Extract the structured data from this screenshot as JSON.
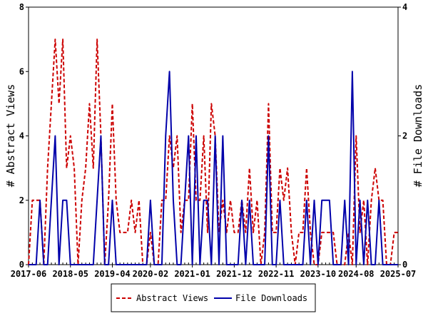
{
  "chart_data": {
    "type": "line",
    "x_tick_labels": [
      "2017-06",
      "2018-05",
      "2019-04",
      "2020-02",
      "2021-01",
      "2021-12",
      "2022-11",
      "2023-10",
      "2024-08",
      "2025-07"
    ],
    "x_range": [
      "2017-06",
      "2025-07"
    ],
    "y_left": {
      "label": "# Abstract Views",
      "range": [
        0,
        8
      ],
      "ticks": [
        "0",
        "2",
        "4",
        "6",
        "8"
      ]
    },
    "y_right": {
      "label": "# File Downloads",
      "range": [
        0,
        4
      ],
      "ticks": [
        "0",
        "2",
        "4"
      ]
    },
    "grid": false,
    "legend_position": "bottom",
    "series": [
      {
        "name": "Abstract Views",
        "axis": "left",
        "color": "#cc0000",
        "style": "dashed",
        "points": [
          [
            "2017-06",
            0
          ],
          [
            "2017-07",
            2
          ],
          [
            "2017-08",
            2
          ],
          [
            "2017-09",
            2
          ],
          [
            "2017-10",
            0
          ],
          [
            "2017-11",
            3
          ],
          [
            "2017-12",
            5
          ],
          [
            "2018-01",
            7
          ],
          [
            "2018-02",
            5
          ],
          [
            "2018-03",
            7
          ],
          [
            "2018-04",
            3
          ],
          [
            "2018-05",
            4
          ],
          [
            "2018-06",
            3
          ],
          [
            "2018-07",
            0
          ],
          [
            "2018-08",
            2
          ],
          [
            "2018-09",
            3
          ],
          [
            "2018-10",
            5
          ],
          [
            "2018-11",
            3
          ],
          [
            "2018-12",
            7
          ],
          [
            "2019-01",
            4
          ],
          [
            "2019-02",
            0
          ],
          [
            "2019-03",
            2
          ],
          [
            "2019-04",
            5
          ],
          [
            "2019-05",
            2
          ],
          [
            "2019-06",
            1
          ],
          [
            "2019-07",
            1
          ],
          [
            "2019-08",
            1
          ],
          [
            "2019-09",
            2
          ],
          [
            "2019-10",
            1
          ],
          [
            "2019-11",
            2
          ],
          [
            "2019-12",
            0
          ],
          [
            "2020-01",
            0
          ],
          [
            "2020-02",
            1
          ],
          [
            "2020-03",
            0
          ],
          [
            "2020-04",
            0
          ],
          [
            "2020-05",
            2
          ],
          [
            "2020-06",
            2
          ],
          [
            "2020-07",
            4
          ],
          [
            "2020-08",
            3
          ],
          [
            "2020-09",
            4
          ],
          [
            "2020-10",
            1
          ],
          [
            "2020-11",
            2
          ],
          [
            "2020-12",
            2
          ],
          [
            "2021-01",
            5
          ],
          [
            "2021-02",
            2
          ],
          [
            "2021-03",
            2
          ],
          [
            "2021-04",
            4
          ],
          [
            "2021-05",
            1
          ],
          [
            "2021-06",
            5
          ],
          [
            "2021-07",
            4
          ],
          [
            "2021-08",
            1
          ],
          [
            "2021-09",
            2
          ],
          [
            "2021-10",
            1
          ],
          [
            "2021-11",
            2
          ],
          [
            "2021-12",
            1
          ],
          [
            "2022-01",
            1
          ],
          [
            "2022-02",
            2
          ],
          [
            "2022-03",
            1
          ],
          [
            "2022-04",
            3
          ],
          [
            "2022-05",
            1
          ],
          [
            "2022-06",
            2
          ],
          [
            "2022-07",
            0
          ],
          [
            "2022-08",
            1
          ],
          [
            "2022-09",
            5
          ],
          [
            "2022-10",
            1
          ],
          [
            "2022-11",
            1
          ],
          [
            "2022-12",
            3
          ],
          [
            "2023-01",
            2
          ],
          [
            "2023-02",
            3
          ],
          [
            "2023-03",
            1
          ],
          [
            "2023-04",
            0
          ],
          [
            "2023-05",
            1
          ],
          [
            "2023-06",
            1
          ],
          [
            "2023-07",
            3
          ],
          [
            "2023-08",
            1
          ],
          [
            "2023-09",
            0
          ],
          [
            "2023-10",
            0
          ],
          [
            "2023-11",
            1
          ],
          [
            "2023-12",
            1
          ],
          [
            "2024-01",
            1
          ],
          [
            "2024-02",
            1
          ],
          [
            "2024-03",
            0
          ],
          [
            "2024-04",
            0
          ],
          [
            "2024-05",
            0
          ],
          [
            "2024-06",
            1
          ],
          [
            "2024-07",
            0
          ],
          [
            "2024-08",
            4
          ],
          [
            "2024-09",
            1
          ],
          [
            "2024-10",
            2
          ],
          [
            "2024-11",
            0
          ],
          [
            "2024-12",
            2
          ],
          [
            "2025-01",
            3
          ],
          [
            "2025-02",
            2
          ],
          [
            "2025-03",
            2
          ],
          [
            "2025-04",
            0
          ],
          [
            "2025-05",
            0
          ],
          [
            "2025-06",
            1
          ],
          [
            "2025-07",
            1
          ]
        ]
      },
      {
        "name": "File Downloads",
        "axis": "right",
        "color": "#0000aa",
        "style": "solid",
        "points": [
          [
            "2017-06",
            0
          ],
          [
            "2017-07",
            0
          ],
          [
            "2017-08",
            0
          ],
          [
            "2017-09",
            1
          ],
          [
            "2017-10",
            0
          ],
          [
            "2017-11",
            0
          ],
          [
            "2017-12",
            1
          ],
          [
            "2018-01",
            2
          ],
          [
            "2018-02",
            0
          ],
          [
            "2018-03",
            1
          ],
          [
            "2018-04",
            1
          ],
          [
            "2018-05",
            0
          ],
          [
            "2018-06",
            0
          ],
          [
            "2018-07",
            0
          ],
          [
            "2018-08",
            0
          ],
          [
            "2018-09",
            0
          ],
          [
            "2018-10",
            0
          ],
          [
            "2018-11",
            0
          ],
          [
            "2018-12",
            1
          ],
          [
            "2019-01",
            2
          ],
          [
            "2019-02",
            0
          ],
          [
            "2019-03",
            0
          ],
          [
            "2019-04",
            1
          ],
          [
            "2019-05",
            0
          ],
          [
            "2019-06",
            0
          ],
          [
            "2019-07",
            0
          ],
          [
            "2019-08",
            0
          ],
          [
            "2019-09",
            0
          ],
          [
            "2019-10",
            0
          ],
          [
            "2019-11",
            0
          ],
          [
            "2019-12",
            0
          ],
          [
            "2020-01",
            0
          ],
          [
            "2020-02",
            1
          ],
          [
            "2020-03",
            0
          ],
          [
            "2020-04",
            0
          ],
          [
            "2020-05",
            0
          ],
          [
            "2020-06",
            2
          ],
          [
            "2020-07",
            3
          ],
          [
            "2020-08",
            1
          ],
          [
            "2020-09",
            0
          ],
          [
            "2020-10",
            0
          ],
          [
            "2020-11",
            1
          ],
          [
            "2020-12",
            2
          ],
          [
            "2021-01",
            0
          ],
          [
            "2021-02",
            2
          ],
          [
            "2021-03",
            0
          ],
          [
            "2021-04",
            1
          ],
          [
            "2021-05",
            1
          ],
          [
            "2021-06",
            0
          ],
          [
            "2021-07",
            2
          ],
          [
            "2021-08",
            0
          ],
          [
            "2021-09",
            2
          ],
          [
            "2021-10",
            0
          ],
          [
            "2021-11",
            0
          ],
          [
            "2021-12",
            0
          ],
          [
            "2022-01",
            0
          ],
          [
            "2022-02",
            1
          ],
          [
            "2022-03",
            0
          ],
          [
            "2022-04",
            1
          ],
          [
            "2022-05",
            0
          ],
          [
            "2022-06",
            0
          ],
          [
            "2022-07",
            0
          ],
          [
            "2022-08",
            0
          ],
          [
            "2022-09",
            2
          ],
          [
            "2022-10",
            0
          ],
          [
            "2022-11",
            0
          ],
          [
            "2022-12",
            1
          ],
          [
            "2023-01",
            0
          ],
          [
            "2023-02",
            0
          ],
          [
            "2023-03",
            0
          ],
          [
            "2023-04",
            0
          ],
          [
            "2023-05",
            0
          ],
          [
            "2023-06",
            0
          ],
          [
            "2023-07",
            1
          ],
          [
            "2023-08",
            0
          ],
          [
            "2023-09",
            1
          ],
          [
            "2023-10",
            0
          ],
          [
            "2023-11",
            1
          ],
          [
            "2023-12",
            1
          ],
          [
            "2024-01",
            1
          ],
          [
            "2024-02",
            0
          ],
          [
            "2024-03",
            0
          ],
          [
            "2024-04",
            0
          ],
          [
            "2024-05",
            1
          ],
          [
            "2024-06",
            0
          ],
          [
            "2024-07",
            3
          ],
          [
            "2024-08",
            0
          ],
          [
            "2024-09",
            1
          ],
          [
            "2024-10",
            0
          ],
          [
            "2024-11",
            1
          ],
          [
            "2024-12",
            0
          ],
          [
            "2025-01",
            0
          ],
          [
            "2025-02",
            1
          ],
          [
            "2025-03",
            0
          ],
          [
            "2025-04",
            0
          ],
          [
            "2025-05",
            0
          ],
          [
            "2025-06",
            0
          ],
          [
            "2025-07",
            0
          ]
        ]
      }
    ]
  }
}
